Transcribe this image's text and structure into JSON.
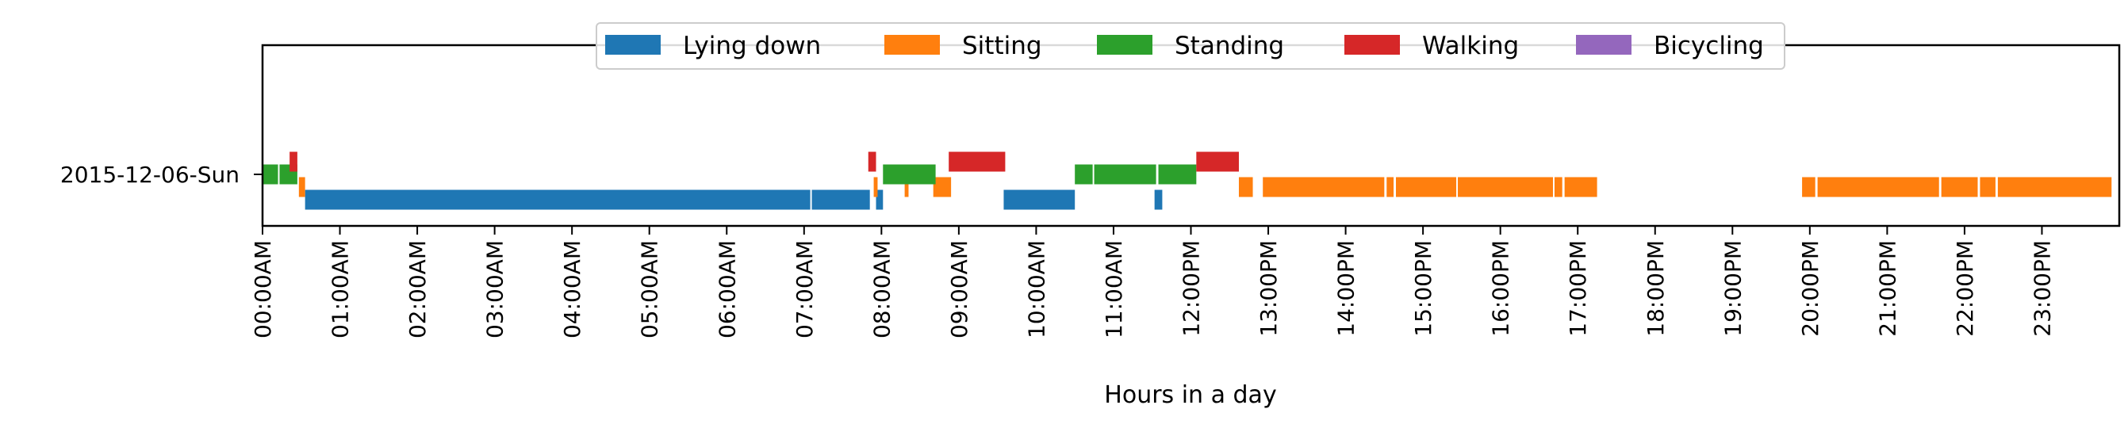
{
  "chart_data": {
    "type": "bar",
    "orientation": "horizontal",
    "row_label": "2015-12-06-Sun",
    "xlabel": "Hours in a day",
    "xlim": [
      0,
      24
    ],
    "x_tick_labels": [
      "00:00AM",
      "01:00AM",
      "02:00AM",
      "03:00AM",
      "04:00AM",
      "05:00AM",
      "06:00AM",
      "07:00AM",
      "08:00AM",
      "09:00AM",
      "10:00AM",
      "11:00AM",
      "12:00PM",
      "13:00PM",
      "14:00PM",
      "15:00PM",
      "16:00PM",
      "17:00PM",
      "18:00PM",
      "19:00PM",
      "20:00PM",
      "21:00PM",
      "22:00PM",
      "23:00PM"
    ],
    "legend_placement": "top-center",
    "grid": false,
    "series": [
      {
        "name": "Lying down",
        "color": "#1f77b4",
        "lane": 0,
        "intervals": [
          [
            0.55,
            7.08
          ],
          [
            7.1,
            7.85
          ],
          [
            7.93,
            8.02
          ],
          [
            9.58,
            10.5
          ],
          [
            11.53,
            11.63
          ]
        ]
      },
      {
        "name": "Sitting",
        "color": "#ff7f0e",
        "lane": 1,
        "intervals": [
          [
            0.47,
            0.55
          ],
          [
            7.9,
            7.95
          ],
          [
            8.3,
            8.35
          ],
          [
            8.67,
            8.9
          ],
          [
            12.62,
            12.8
          ],
          [
            12.93,
            14.5
          ],
          [
            14.53,
            14.62
          ],
          [
            14.65,
            15.43
          ],
          [
            15.45,
            16.68
          ],
          [
            16.7,
            16.8
          ],
          [
            16.83,
            17.25
          ],
          [
            19.9,
            20.07
          ],
          [
            20.1,
            21.67
          ],
          [
            21.7,
            22.17
          ],
          [
            22.2,
            22.4
          ],
          [
            22.43,
            23.9
          ]
        ]
      },
      {
        "name": "Standing",
        "color": "#2ca02c",
        "lane": 2,
        "intervals": [
          [
            0.0,
            0.2
          ],
          [
            0.22,
            0.45
          ],
          [
            8.02,
            8.7
          ],
          [
            10.5,
            10.73
          ],
          [
            10.75,
            11.55
          ],
          [
            11.58,
            12.07
          ]
        ]
      },
      {
        "name": "Walking",
        "color": "#d62728",
        "lane": 3,
        "intervals": [
          [
            0.35,
            0.45
          ],
          [
            7.83,
            7.93
          ],
          [
            8.87,
            9.6
          ],
          [
            12.07,
            12.62
          ]
        ]
      },
      {
        "name": "Bicycling",
        "color": "#9467bd",
        "lane": 4,
        "intervals": []
      }
    ]
  }
}
